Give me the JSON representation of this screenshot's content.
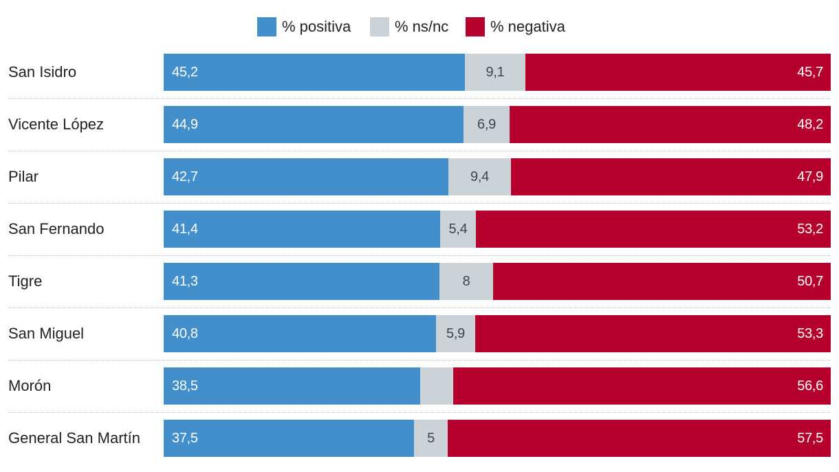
{
  "chart_data": {
    "type": "bar",
    "orientation": "horizontal",
    "stacked": true,
    "title": "",
    "xlabel": "",
    "ylabel": "",
    "xlim": [
      0,
      100
    ],
    "legend_position": "top-center",
    "categories": [
      "San Isidro",
      "Vicente López",
      "Pilar",
      "San Fernando",
      "Tigre",
      "San Miguel",
      "Morón",
      "General San Martín"
    ],
    "series": [
      {
        "name": "% positiva",
        "color": "#428fcc",
        "values": [
          45.2,
          44.9,
          42.7,
          41.4,
          41.3,
          40.8,
          38.5,
          37.5
        ],
        "labels": [
          "45,2",
          "44,9",
          "42,7",
          "41,4",
          "41,3",
          "40,8",
          "38,5",
          "37,5"
        ]
      },
      {
        "name": "% ns/nc",
        "color": "#cbd3d8",
        "values": [
          9.1,
          6.9,
          9.4,
          5.4,
          8,
          5.9,
          4.9,
          5
        ],
        "labels": [
          "9,1",
          "6,9",
          "9,4",
          "5,4",
          "8",
          "5,9",
          "",
          "5"
        ]
      },
      {
        "name": "% negativa",
        "color": "#b5002e",
        "values": [
          45.7,
          48.2,
          47.9,
          53.2,
          50.7,
          53.3,
          56.6,
          57.5
        ],
        "labels": [
          "45,7",
          "48,2",
          "47,9",
          "53,2",
          "50,7",
          "53,3",
          "56,6",
          "57,5"
        ]
      }
    ]
  }
}
